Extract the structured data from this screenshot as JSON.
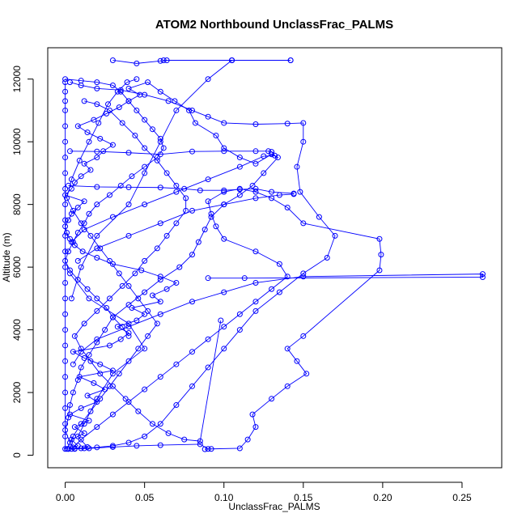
{
  "chart_data": {
    "type": "line",
    "title": "ATOM2 Northbound UnclassFrac_PALMS",
    "xlabel": "UnclassFrac_PALMS",
    "ylabel": "Altitude (m)",
    "xlim": [
      -0.011,
      0.275
    ],
    "ylim": [
      -400,
      13000
    ],
    "x_ticks": [
      0.0,
      0.05,
      0.1,
      0.15,
      0.2,
      0.25
    ],
    "x_tick_labels": [
      "0.00",
      "0.05",
      "0.10",
      "0.15",
      "0.20",
      "0.25"
    ],
    "y_ticks": [
      0,
      2000,
      4000,
      6000,
      8000,
      10000,
      12000
    ],
    "y_tick_labels": [
      "0",
      "2000",
      "4000",
      "6000",
      "8000",
      "10000",
      "12000"
    ],
    "grid": false,
    "legend": "none",
    "series_color": "#0000ff",
    "series": [
      {
        "x": [
          0.002,
          0.008,
          0.004,
          0.012,
          0.006,
          0.015,
          0.003,
          0.01,
          0.02,
          0.014,
          0.025,
          0.018,
          0.009,
          0.03,
          0.022,
          0.012,
          0.005,
          0.028,
          0.035,
          0.04,
          0.033,
          0.045,
          0.05,
          0.042,
          0.06,
          0.055,
          0.064,
          0.07,
          0.06,
          0.048,
          0.03,
          0.02,
          0.011,
          0.006,
          0.003,
          0.001,
          0.0,
          0.002,
          0.004,
          0.008,
          0.012,
          0.0,
          0.004,
          0.006,
          0.01,
          0.016,
          0.012,
          0.02,
          0.024,
          0.03,
          0.022,
          0.014,
          0.008,
          0.018,
          0.026,
          0.034,
          0.04,
          0.047,
          0.04,
          0.052,
          0.06,
          0.069,
          0.078,
          0.082,
          0.095,
          0.1,
          0.11,
          0.12,
          0.13,
          0.134,
          0.125,
          0.118,
          0.11,
          0.1,
          0.092,
          0.088,
          0.084,
          0.08,
          0.072,
          0.06,
          0.05,
          0.04,
          0.03,
          0.025,
          0.02,
          0.015,
          0.01,
          0.008,
          0.005,
          0.003,
          0.002,
          0.0,
          0.003,
          0.006,
          0.01,
          0.014,
          0.008,
          0.012,
          0.02,
          0.03,
          0.05,
          0.04,
          0.015,
          0.003
        ],
        "y": [
          200,
          300,
          500,
          700,
          900,
          1100,
          1300,
          1500,
          1700,
          1900,
          2100,
          2300,
          2500,
          2700,
          2900,
          3100,
          3300,
          3500,
          3700,
          3900,
          4100,
          4300,
          4500,
          4700,
          4900,
          5100,
          5300,
          5500,
          5700,
          5900,
          6100,
          6300,
          6500,
          6700,
          6900,
          7100,
          7300,
          7500,
          7700,
          7900,
          8100,
          8300,
          8500,
          8700,
          8900,
          9100,
          9300,
          9500,
          9700,
          9900,
          10100,
          10300,
          10500,
          10700,
          10900,
          11100,
          11300,
          11500,
          11700,
          11900,
          11600,
          11300,
          11000,
          10600,
          10200,
          9800,
          9500,
          9300,
          9600,
          9500,
          9000,
          8600,
          8300,
          8000,
          7600,
          7200,
          6800,
          6400,
          6000,
          5600,
          5200,
          4800,
          4400,
          4000,
          3600,
          3200,
          2800,
          2400,
          2000,
          1600,
          1200,
          800,
          400,
          200,
          220,
          260,
          600,
          1000,
          1800,
          2600,
          3400,
          4200,
          5000,
          5800
        ]
      },
      {
        "x": [
          0.003,
          0.01,
          0.02,
          0.035,
          0.05,
          0.065,
          0.08,
          0.09,
          0.1,
          0.12,
          0.14,
          0.15,
          0.15,
          0.146,
          0.148,
          0.16,
          0.17,
          0.165,
          0.15,
          0.135,
          0.12,
          0.11,
          0.1,
          0.09,
          0.08,
          0.07,
          0.06,
          0.05,
          0.04,
          0.03,
          0.02,
          0.012,
          0.006,
          0.002
        ],
        "y": [
          11900,
          11800,
          11700,
          11650,
          11500,
          11300,
          11000,
          10800,
          10600,
          10560,
          10580,
          10600,
          10000,
          9200,
          8400,
          7600,
          7000,
          6300,
          5800,
          5200,
          4600,
          4000,
          3400,
          2800,
          2200,
          1600,
          1000,
          600,
          400,
          300,
          250,
          220,
          210,
          200
        ]
      },
      {
        "x": [
          0.004,
          0.015,
          0.03,
          0.045,
          0.06,
          0.085,
          0.09,
          0.088,
          0.092,
          0.11,
          0.115,
          0.12,
          0.118,
          0.13,
          0.14,
          0.152,
          0.146,
          0.14,
          0.15,
          0.198,
          0.199,
          0.198,
          0.15,
          0.14,
          0.13,
          0.12,
          0.11,
          0.1,
          0.09,
          0.092,
          0.095,
          0.1,
          0.12,
          0.135,
          0.14,
          0.13,
          0.12,
          0.11,
          0.1,
          0.09,
          0.08,
          0.07,
          0.06,
          0.05,
          0.04,
          0.03,
          0.02,
          0.01,
          0.005
        ],
        "y": [
          200,
          220,
          260,
          300,
          320,
          350,
          200,
          190,
          200,
          220,
          500,
          900,
          1300,
          1800,
          2200,
          2600,
          3000,
          3400,
          3800,
          5900,
          6400,
          6900,
          7400,
          7900,
          8200,
          8400,
          8500,
          8400,
          8100,
          7700,
          7300,
          6900,
          6500,
          6100,
          5700,
          5300,
          4900,
          4500,
          4100,
          3700,
          3300,
          2900,
          2500,
          2100,
          1700,
          1300,
          900,
          500,
          250
        ]
      },
      {
        "x": [
          0.09,
          0.113,
          0.263,
          0.263,
          0.15,
          0.12,
          0.1,
          0.08,
          0.06,
          0.04,
          0.02,
          0.01,
          0.005
        ],
        "y": [
          5650,
          5650,
          5680,
          5780,
          5700,
          5500,
          5200,
          4900,
          4500,
          4100,
          3700,
          3300,
          2900
        ]
      },
      {
        "x": [
          0.03,
          0.045,
          0.06,
          0.064,
          0.062,
          0.105,
          0.105,
          0.142,
          0.142,
          0.105,
          0.09,
          0.07,
          0.06,
          0.05,
          0.04,
          0.02,
          0.01,
          0.004
        ],
        "y": [
          12600,
          12500,
          12580,
          12600,
          12600,
          12600,
          12600,
          12600,
          12600,
          12600,
          12000,
          11000,
          10000,
          9000,
          8000,
          7000,
          6000,
          5000
        ]
      },
      {
        "x": [
          0.003,
          0.02,
          0.04,
          0.06,
          0.08,
          0.1,
          0.12,
          0.128,
          0.13,
          0.132,
          0.125,
          0.11,
          0.09,
          0.07,
          0.05,
          0.03,
          0.012,
          0.004
        ],
        "y": [
          9700,
          9690,
          9650,
          9600,
          9690,
          9700,
          9700,
          9700,
          9680,
          9560,
          9540,
          9200,
          8800,
          8400,
          8000,
          7600,
          7200,
          6800
        ]
      },
      {
        "x": [
          0.002,
          0.02,
          0.04,
          0.06,
          0.075,
          0.085,
          0.1,
          0.11,
          0.12,
          0.13,
          0.144,
          0.144,
          0.135,
          0.12,
          0.1,
          0.08,
          0.06,
          0.04,
          0.02,
          0.008
        ],
        "y": [
          8600,
          8560,
          8550,
          8540,
          8500,
          8450,
          8450,
          8480,
          8500,
          8400,
          8350,
          8330,
          8300,
          8200,
          8000,
          7800,
          7400,
          7000,
          6600,
          6200
        ]
      },
      {
        "x": [
          0.0,
          0.01,
          0.02,
          0.03,
          0.035,
          0.04,
          0.045,
          0.05,
          0.055,
          0.06,
          0.062,
          0.058,
          0.05,
          0.042,
          0.035,
          0.028,
          0.02,
          0.015,
          0.012,
          0.008,
          0.005,
          0.002,
          0.0,
          0.003,
          0.008,
          0.014,
          0.02,
          0.026,
          0.03,
          0.036,
          0.04
        ],
        "y": [
          12000,
          11950,
          11900,
          11800,
          11600,
          11300,
          11000,
          10700,
          10400,
          10100,
          9800,
          9500,
          9200,
          8900,
          8600,
          8300,
          8000,
          7700,
          7400,
          7100,
          6800,
          6500,
          6200,
          5900,
          5600,
          5300,
          5000,
          4700,
          4400,
          4100,
          3800
        ]
      },
      {
        "x": [
          0.001,
          0.005,
          0.01,
          0.016,
          0.022,
          0.028,
          0.034,
          0.04,
          0.046,
          0.052,
          0.058,
          0.052,
          0.046,
          0.04,
          0.034,
          0.028,
          0.022,
          0.016,
          0.01,
          0.005,
          0.001,
          0.004,
          0.009,
          0.015,
          0.021,
          0.027,
          0.033,
          0.039,
          0.045
        ],
        "y": [
          200,
          600,
          1000,
          1400,
          1800,
          2200,
          2600,
          3000,
          3400,
          3800,
          4200,
          4600,
          5000,
          5400,
          5800,
          6200,
          6600,
          7000,
          7400,
          7800,
          8200,
          8800,
          9400,
          10000,
          10600,
          11200,
          11600,
          11900,
          12000
        ]
      },
      {
        "x": [
          0.0,
          0.0,
          0.0,
          0.0,
          0.0,
          0.0,
          0.0,
          0.0,
          0.0,
          0.0,
          0.0,
          0.0,
          0.0,
          0.0,
          0.0,
          0.0,
          0.0,
          0.0,
          0.0,
          0.0,
          0.0,
          0.0,
          0.0,
          0.0,
          0.0,
          0.0
        ],
        "y": [
          200,
          600,
          1000,
          1500,
          2000,
          2500,
          3000,
          3500,
          4000,
          4500,
          5000,
          5500,
          6000,
          6500,
          7000,
          7500,
          8000,
          8500,
          9000,
          9500,
          10000,
          10500,
          11000,
          11300,
          11600,
          11900
        ]
      },
      {
        "x": [
          0.012,
          0.02,
          0.028,
          0.036,
          0.044,
          0.05,
          0.058,
          0.064,
          0.07,
          0.076,
          0.076,
          0.07,
          0.064,
          0.058,
          0.05,
          0.044,
          0.036,
          0.028,
          0.02,
          0.012,
          0.006,
          0.01,
          0.016,
          0.022,
          0.03,
          0.038,
          0.046,
          0.055,
          0.065,
          0.075,
          0.085,
          0.098
        ],
        "y": [
          11300,
          11200,
          11000,
          10600,
          10200,
          9800,
          9400,
          9000,
          8600,
          8200,
          7800,
          7400,
          7000,
          6600,
          6200,
          5800,
          5400,
          5000,
          4600,
          4200,
          3800,
          3400,
          3000,
          2600,
          2200,
          1800,
          1400,
          1000,
          700,
          500,
          450,
          4300
        ]
      }
    ]
  }
}
